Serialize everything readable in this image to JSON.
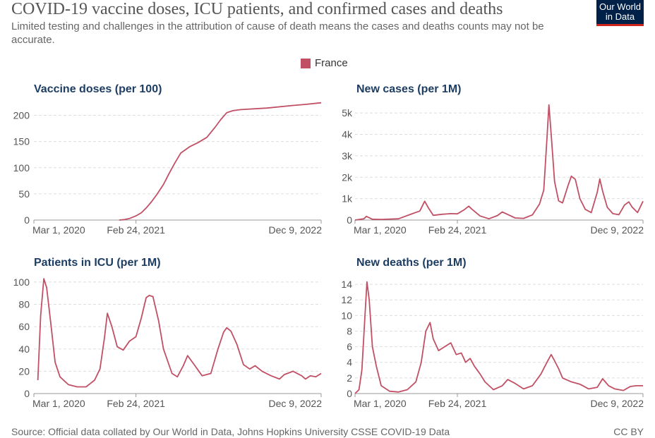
{
  "title": "COVID-19 vaccine doses, ICU patients, and confirmed cases and deaths",
  "subtitle": "Limited testing and challenges in the attribution of cause of death means the cases and deaths counts may not be accurate.",
  "logo": {
    "line1": "Our World",
    "line2": "in Data",
    "bg": "#002147",
    "accent": "#ce261e"
  },
  "legend": {
    "label": "France",
    "color": "#c15065"
  },
  "source": "Source: Official data collated by Our World in Data, Johns Hopkins University CSSE COVID-19 Data",
  "license": "CC BY",
  "chart_data": [
    {
      "type": "line",
      "title": "Vaccine doses (per 100)",
      "series_name": "France",
      "xlim": [
        "2020-03-01",
        "2022-12-09"
      ],
      "xticks": [
        "Mar 1, 2020",
        "Feb 24, 2021",
        "Dec 9, 2022"
      ],
      "ylim": [
        0,
        225
      ],
      "yticks": [
        0,
        50,
        100,
        150,
        200
      ],
      "yticklabels": [
        "0",
        "50",
        "100",
        "150",
        "200"
      ],
      "x": [
        "2020-12-27",
        "2021-01-15",
        "2021-02-01",
        "2021-02-24",
        "2021-03-15",
        "2021-04-01",
        "2021-04-20",
        "2021-05-10",
        "2021-06-01",
        "2021-06-20",
        "2021-07-10",
        "2021-08-01",
        "2021-09-01",
        "2021-10-01",
        "2021-11-01",
        "2021-12-01",
        "2021-12-20",
        "2022-01-10",
        "2022-02-01",
        "2022-03-01",
        "2022-06-01",
        "2022-09-01",
        "2022-10-15",
        "2022-12-09"
      ],
      "y": [
        0,
        1,
        3,
        8,
        14,
        23,
        35,
        50,
        68,
        88,
        108,
        128,
        140,
        148,
        158,
        178,
        192,
        205,
        209,
        211,
        214,
        219,
        221,
        224
      ]
    },
    {
      "type": "line",
      "title": "New cases (per 1M)",
      "series_name": "France",
      "xlim": [
        "2020-03-01",
        "2022-12-09"
      ],
      "xticks": [
        "Mar 1, 2020",
        "Feb 24, 2021",
        "Dec 9, 2022"
      ],
      "ylim": [
        0,
        5500
      ],
      "yticks": [
        0,
        1000,
        2000,
        3000,
        4000,
        5000
      ],
      "yticklabels": [
        "0",
        "1k",
        "2k",
        "3k",
        "4k",
        "5k"
      ],
      "x": [
        "2020-03-01",
        "2020-04-01",
        "2020-04-10",
        "2020-05-01",
        "2020-06-01",
        "2020-08-01",
        "2020-09-15",
        "2020-10-15",
        "2020-11-01",
        "2020-11-15",
        "2020-12-01",
        "2021-01-01",
        "2021-02-01",
        "2021-02-24",
        "2021-03-20",
        "2021-04-05",
        "2021-04-15",
        "2021-05-15",
        "2021-06-15",
        "2021-07-15",
        "2021-08-01",
        "2021-08-20",
        "2021-09-15",
        "2021-10-15",
        "2021-11-15",
        "2021-12-10",
        "2021-12-25",
        "2022-01-05",
        "2022-01-12",
        "2022-01-20",
        "2022-02-01",
        "2022-02-15",
        "2022-03-01",
        "2022-03-20",
        "2022-04-01",
        "2022-04-15",
        "2022-05-01",
        "2022-05-20",
        "2022-06-10",
        "2022-07-01",
        "2022-07-10",
        "2022-07-20",
        "2022-08-05",
        "2022-08-25",
        "2022-09-15",
        "2022-10-05",
        "2022-10-20",
        "2022-11-01",
        "2022-11-20",
        "2022-12-09"
      ],
      "y": [
        0,
        60,
        170,
        40,
        30,
        60,
        280,
        420,
        880,
        550,
        220,
        270,
        300,
        290,
        480,
        650,
        520,
        190,
        60,
        210,
        380,
        260,
        100,
        80,
        240,
        750,
        1400,
        3800,
        5380,
        4000,
        1800,
        900,
        800,
        1600,
        2050,
        1900,
        1000,
        500,
        350,
        1300,
        1920,
        1350,
        600,
        300,
        250,
        700,
        850,
        600,
        350,
        880
      ]
    },
    {
      "type": "line",
      "title": "Patients in ICU (per 1M)",
      "series_name": "France",
      "xlim": [
        "2020-03-01",
        "2022-12-09"
      ],
      "xticks": [
        "Mar 1, 2020",
        "Feb 24, 2021",
        "Dec 9, 2022"
      ],
      "ylim": [
        0,
        105
      ],
      "yticks": [
        0,
        20,
        40,
        60,
        80,
        100
      ],
      "yticklabels": [
        "0",
        "20",
        "40",
        "60",
        "80",
        "100"
      ],
      "x": [
        "2020-03-15",
        "2020-03-25",
        "2020-04-05",
        "2020-04-15",
        "2020-05-01",
        "2020-05-15",
        "2020-06-01",
        "2020-07-01",
        "2020-08-01",
        "2020-09-01",
        "2020-10-01",
        "2020-10-20",
        "2020-11-05",
        "2020-11-15",
        "2020-12-01",
        "2020-12-20",
        "2021-01-10",
        "2021-02-01",
        "2021-02-24",
        "2021-03-15",
        "2021-04-01",
        "2021-04-12",
        "2021-04-25",
        "2021-05-15",
        "2021-06-01",
        "2021-07-01",
        "2021-07-20",
        "2021-08-10",
        "2021-08-25",
        "2021-09-20",
        "2021-10-15",
        "2021-11-15",
        "2021-12-10",
        "2021-12-30",
        "2022-01-10",
        "2022-01-25",
        "2022-02-15",
        "2022-03-10",
        "2022-04-01",
        "2022-04-20",
        "2022-05-15",
        "2022-06-15",
        "2022-07-15",
        "2022-08-01",
        "2022-09-01",
        "2022-10-01",
        "2022-10-15",
        "2022-11-01",
        "2022-11-20",
        "2022-12-09"
      ],
      "y": [
        12,
        70,
        103,
        95,
        60,
        28,
        15,
        8,
        6,
        6,
        12,
        22,
        50,
        72,
        60,
        42,
        39,
        47,
        51,
        68,
        86,
        88,
        87,
        65,
        40,
        18,
        15,
        25,
        34,
        25,
        16,
        18,
        40,
        55,
        59,
        56,
        44,
        26,
        22,
        25,
        20,
        16,
        13,
        17,
        20,
        16,
        13,
        16,
        15,
        18
      ]
    },
    {
      "type": "line",
      "title": "New deaths (per 1M)",
      "series_name": "France",
      "xlim": [
        "2020-03-01",
        "2022-12-09"
      ],
      "xticks": [
        "Mar 1, 2020",
        "Feb 24, 2021",
        "Dec 9, 2022"
      ],
      "ylim": [
        0,
        15
      ],
      "yticks": [
        0,
        2,
        4,
        6,
        8,
        10,
        12,
        14
      ],
      "yticklabels": [
        "0",
        "2",
        "4",
        "6",
        "8",
        "10",
        "12",
        "14"
      ],
      "x": [
        "2020-03-01",
        "2020-03-15",
        "2020-03-25",
        "2020-04-05",
        "2020-04-12",
        "2020-04-20",
        "2020-05-01",
        "2020-05-15",
        "2020-06-01",
        "2020-07-01",
        "2020-08-01",
        "2020-09-01",
        "2020-10-01",
        "2020-10-20",
        "2020-11-05",
        "2020-11-20",
        "2020-12-01",
        "2020-12-20",
        "2021-01-10",
        "2021-02-01",
        "2021-02-20",
        "2021-03-10",
        "2021-03-25",
        "2021-04-10",
        "2021-04-25",
        "2021-05-15",
        "2021-06-01",
        "2021-07-01",
        "2021-08-01",
        "2021-08-20",
        "2021-09-15",
        "2021-10-15",
        "2021-11-15",
        "2021-12-15",
        "2022-01-05",
        "2022-01-20",
        "2022-02-01",
        "2022-02-15",
        "2022-03-01",
        "2022-04-01",
        "2022-05-01",
        "2022-06-01",
        "2022-07-01",
        "2022-07-20",
        "2022-08-10",
        "2022-09-01",
        "2022-10-01",
        "2022-10-25",
        "2022-11-15",
        "2022-12-09"
      ],
      "y": [
        0,
        0.5,
        3,
        10,
        14.3,
        12,
        6,
        3.5,
        1,
        0.3,
        0.2,
        0.5,
        1.5,
        4,
        8,
        9.1,
        7,
        5.5,
        6,
        6.5,
        5,
        5.2,
        4,
        4.5,
        3.5,
        2.5,
        1.5,
        0.5,
        1,
        1.8,
        1.3,
        0.6,
        1,
        2.5,
        4,
        5,
        4.2,
        3.2,
        2,
        1.5,
        1.2,
        0.6,
        0.8,
        1.9,
        1.0,
        0.6,
        0.4,
        0.9,
        1.0,
        1.0
      ]
    }
  ]
}
